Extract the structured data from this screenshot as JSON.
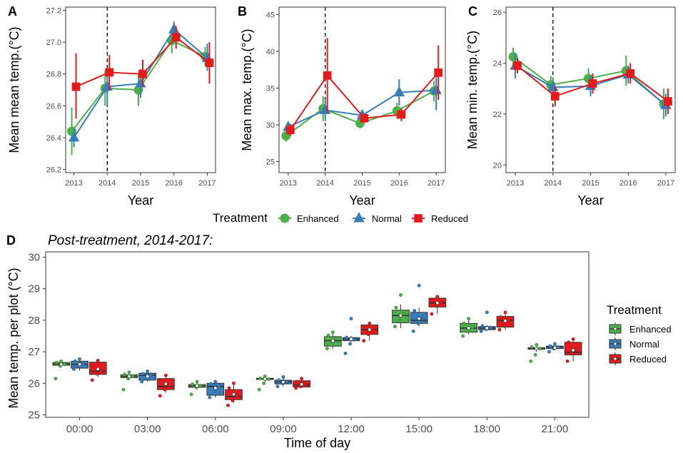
{
  "colors": {
    "Enhanced": "#4daf4a",
    "Normal": "#377eb8",
    "Reduced": "#e41a1c"
  },
  "legend_top": {
    "title": "Treatment",
    "entries": [
      "Enhanced",
      "Normal",
      "Reduced"
    ]
  },
  "legend_right": {
    "title": "Treatment",
    "entries": [
      "Enhanced",
      "Normal",
      "Reduced"
    ]
  },
  "chart_data": [
    {
      "panel": "A",
      "type": "line",
      "title": "",
      "xlabel": "Year",
      "ylabel": "Mean mean temp.(°C)",
      "x": [
        "2013",
        "2014",
        "2015",
        "2016",
        "2017"
      ],
      "ylim": [
        26.18,
        27.22
      ],
      "yticks": [
        26.2,
        26.4,
        26.6,
        26.8,
        27.0,
        27.2
      ],
      "ytick_labels": [
        "26.2",
        "26.4",
        "26.6",
        "26.8",
        "27.0",
        "27.2"
      ],
      "vline_at": "2014",
      "series": [
        {
          "name": "Enhanced",
          "values": [
            26.44,
            26.71,
            26.7,
            27.01,
            26.91
          ],
          "lo": [
            26.29,
            26.6,
            26.6,
            26.93,
            26.85
          ],
          "hi": [
            26.59,
            26.82,
            26.8,
            27.09,
            26.97
          ]
        },
        {
          "name": "Normal",
          "values": [
            26.4,
            26.72,
            26.74,
            27.08,
            26.9
          ],
          "lo": [
            26.34,
            26.6,
            26.65,
            27.03,
            26.82
          ],
          "hi": [
            26.46,
            26.84,
            26.83,
            27.13,
            26.99
          ]
        },
        {
          "name": "Reduced",
          "values": [
            26.72,
            26.81,
            26.8,
            27.03,
            26.87
          ],
          "lo": [
            26.52,
            26.7,
            26.72,
            26.96,
            26.74
          ],
          "hi": [
            26.93,
            26.92,
            26.89,
            27.1,
            27.0
          ]
        }
      ]
    },
    {
      "panel": "B",
      "type": "line",
      "title": "",
      "xlabel": "Year",
      "ylabel": "Mean max. temp.(°C)",
      "x": [
        "2013",
        "2014",
        "2015",
        "2016",
        "2017"
      ],
      "ylim": [
        23.5,
        46.0
      ],
      "yticks": [
        25,
        30,
        35,
        40,
        45
      ],
      "ytick_labels": [
        "25",
        "30",
        "35",
        "40",
        "45"
      ],
      "vline_at": "2014",
      "series": [
        {
          "name": "Enhanced",
          "values": [
            28.5,
            32.2,
            30.2,
            31.9,
            34.6
          ],
          "lo": [
            27.7,
            30.5,
            29.5,
            30.8,
            33.2
          ],
          "hi": [
            29.3,
            33.9,
            30.9,
            33.0,
            36.0
          ]
        },
        {
          "name": "Normal",
          "values": [
            29.7,
            32.0,
            31.3,
            34.4,
            34.7
          ],
          "lo": [
            29.0,
            30.5,
            30.6,
            32.6,
            32.0
          ],
          "hi": [
            30.4,
            33.5,
            32.0,
            36.2,
            37.4
          ]
        },
        {
          "name": "Reduced",
          "values": [
            29.3,
            36.7,
            30.9,
            31.4,
            37.1
          ],
          "lo": [
            28.5,
            31.6,
            30.3,
            30.5,
            33.4
          ],
          "hi": [
            30.1,
            41.8,
            31.5,
            32.3,
            40.8
          ]
        }
      ]
    },
    {
      "panel": "C",
      "type": "line",
      "title": "",
      "xlabel": "Year",
      "ylabel": "Mean min. temp.(°C)",
      "x": [
        "2013",
        "2014",
        "2015",
        "2016",
        "2017"
      ],
      "ylim": [
        19.7,
        26.2
      ],
      "yticks": [
        20,
        22,
        24,
        26
      ],
      "ytick_labels": [
        "20",
        "22",
        "24",
        "26"
      ],
      "vline_at": "2014",
      "series": [
        {
          "name": "Enhanced",
          "values": [
            24.25,
            23.15,
            23.4,
            23.7,
            22.4
          ],
          "lo": [
            23.9,
            22.8,
            23.0,
            23.1,
            21.8
          ],
          "hi": [
            24.6,
            23.5,
            23.8,
            24.3,
            23.0
          ]
        },
        {
          "name": "Normal",
          "values": [
            23.9,
            23.05,
            23.1,
            23.55,
            22.35
          ],
          "lo": [
            23.4,
            22.7,
            22.7,
            23.2,
            21.9
          ],
          "hi": [
            24.4,
            23.4,
            23.5,
            23.9,
            22.8
          ]
        },
        {
          "name": "Reduced",
          "values": [
            23.9,
            22.7,
            23.2,
            23.6,
            22.5
          ],
          "lo": [
            23.6,
            22.3,
            22.8,
            23.2,
            22.0
          ],
          "hi": [
            24.2,
            23.1,
            23.6,
            24.0,
            23.0
          ]
        }
      ]
    },
    {
      "panel": "D",
      "type": "box",
      "title": "Post-treatment, 2014-2017:",
      "xlabel": "Time of day",
      "ylabel": "Mean temp. per plot  (°C)",
      "categories": [
        "00:00",
        "03:00",
        "06:00",
        "09:00",
        "12:00",
        "15:00",
        "18:00",
        "21:00"
      ],
      "ylim": [
        24.92,
        30.17
      ],
      "yticks": [
        25,
        26,
        27,
        28,
        29,
        30
      ],
      "ytick_labels": [
        "25",
        "26",
        "27",
        "28",
        "29",
        "30"
      ],
      "series": [
        {
          "name": "Enhanced",
          "boxes": [
            {
              "min": 26.5,
              "q1": 26.57,
              "median": 26.61,
              "q3": 26.66,
              "max": 26.72,
              "mean": 26.6,
              "points": [
                26.15,
                26.55,
                26.6,
                26.66,
                26.7
              ]
            },
            {
              "min": 26.1,
              "q1": 26.18,
              "median": 26.22,
              "q3": 26.27,
              "max": 26.35,
              "mean": 26.22,
              "points": [
                25.8,
                26.15,
                26.22,
                26.28,
                26.35
              ]
            },
            {
              "min": 25.8,
              "q1": 25.87,
              "median": 25.92,
              "q3": 25.96,
              "max": 26.05,
              "mean": 25.92,
              "points": [
                25.65,
                25.88,
                25.93,
                25.97,
                26.05
              ]
            },
            {
              "min": 26.05,
              "q1": 26.12,
              "median": 26.14,
              "q3": 26.16,
              "max": 26.2,
              "mean": 26.14,
              "points": [
                25.8,
                26.0,
                26.13,
                26.16,
                26.22
              ]
            },
            {
              "min": 27.1,
              "q1": 27.18,
              "median": 27.35,
              "q3": 27.48,
              "max": 27.6,
              "mean": 27.35,
              "points": [
                27.1,
                27.3,
                27.42,
                27.52,
                27.62
              ]
            },
            {
              "min": 27.75,
              "q1": 27.92,
              "median": 28.15,
              "q3": 28.32,
              "max": 28.5,
              "mean": 28.15,
              "points": [
                27.8,
                28.0,
                28.2,
                28.4,
                28.8
              ]
            },
            {
              "min": 27.55,
              "q1": 27.62,
              "median": 27.75,
              "q3": 27.9,
              "max": 28.05,
              "mean": 27.75,
              "points": [
                27.5,
                27.65,
                27.78,
                27.9,
                28.05
              ]
            },
            {
              "min": 27.0,
              "q1": 27.08,
              "median": 27.1,
              "q3": 27.13,
              "max": 27.2,
              "mean": 27.1,
              "points": [
                26.7,
                26.9,
                27.1,
                27.15,
                27.22
              ]
            }
          ]
        },
        {
          "name": "Normal",
          "boxes": [
            {
              "min": 26.4,
              "q1": 26.48,
              "median": 26.6,
              "q3": 26.7,
              "max": 26.78,
              "mean": 26.6,
              "points": [
                26.45,
                26.55,
                26.62,
                26.7,
                26.77
              ]
            },
            {
              "min": 26.05,
              "q1": 26.1,
              "median": 26.25,
              "q3": 26.32,
              "max": 26.4,
              "mean": 26.22,
              "points": [
                26.05,
                26.15,
                26.25,
                26.3,
                26.38
              ]
            },
            {
              "min": 25.55,
              "q1": 25.62,
              "median": 25.9,
              "q3": 26.0,
              "max": 26.05,
              "mean": 25.85,
              "points": [
                25.55,
                25.75,
                25.92,
                25.98,
                26.05
              ]
            },
            {
              "min": 25.9,
              "q1": 25.98,
              "median": 26.05,
              "q3": 26.1,
              "max": 26.2,
              "mean": 26.04,
              "points": [
                25.9,
                26.0,
                26.05,
                26.1,
                26.2
              ]
            },
            {
              "min": 27.3,
              "q1": 27.35,
              "median": 27.4,
              "q3": 27.45,
              "max": 27.5,
              "mean": 27.4,
              "points": [
                26.95,
                27.25,
                27.38,
                27.45,
                28.05
              ]
            },
            {
              "min": 27.8,
              "q1": 27.9,
              "median": 28.0,
              "q3": 28.25,
              "max": 28.4,
              "mean": 28.05,
              "points": [
                27.65,
                27.9,
                28.05,
                28.3,
                29.1
              ]
            },
            {
              "min": 27.65,
              "q1": 27.7,
              "median": 27.75,
              "q3": 27.8,
              "max": 27.85,
              "mean": 27.75,
              "points": [
                27.65,
                27.72,
                27.77,
                27.82,
                28.25
              ]
            },
            {
              "min": 27.05,
              "q1": 27.1,
              "median": 27.15,
              "q3": 27.18,
              "max": 27.2,
              "mean": 27.13,
              "points": [
                27.0,
                27.1,
                27.15,
                27.18,
                27.25
              ]
            }
          ]
        },
        {
          "name": "Reduced",
          "boxes": [
            {
              "min": 26.2,
              "q1": 26.28,
              "median": 26.38,
              "q3": 26.67,
              "max": 26.7,
              "mean": 26.45,
              "points": [
                26.1,
                26.3,
                26.4,
                26.55,
                26.72
              ]
            },
            {
              "min": 25.7,
              "q1": 25.8,
              "median": 25.9,
              "q3": 26.15,
              "max": 26.25,
              "mean": 25.98,
              "points": [
                25.6,
                25.8,
                25.95,
                26.1,
                26.25
              ]
            },
            {
              "min": 25.4,
              "q1": 25.48,
              "median": 25.58,
              "q3": 25.8,
              "max": 26.0,
              "mean": 25.65,
              "points": [
                25.3,
                25.45,
                25.6,
                25.85,
                26.0
              ]
            },
            {
              "min": 25.85,
              "q1": 25.88,
              "median": 25.95,
              "q3": 26.08,
              "max": 26.15,
              "mean": 25.97,
              "points": [
                25.85,
                25.9,
                25.98,
                26.05,
                26.15
              ]
            },
            {
              "min": 27.35,
              "q1": 27.55,
              "median": 27.7,
              "q3": 27.85,
              "max": 27.9,
              "mean": 27.7,
              "points": [
                27.35,
                27.55,
                27.7,
                27.8,
                27.9
              ]
            },
            {
              "min": 28.2,
              "q1": 28.42,
              "median": 28.55,
              "q3": 28.7,
              "max": 28.75,
              "mean": 28.55,
              "points": [
                28.2,
                28.45,
                28.55,
                28.65,
                28.75
              ]
            },
            {
              "min": 27.7,
              "q1": 27.78,
              "median": 28.0,
              "q3": 28.12,
              "max": 28.25,
              "mean": 27.98,
              "points": [
                27.7,
                27.85,
                27.98,
                28.1,
                28.25
              ]
            },
            {
              "min": 26.7,
              "q1": 26.9,
              "median": 26.98,
              "q3": 27.3,
              "max": 27.4,
              "mean": 27.05,
              "points": [
                26.7,
                26.95,
                27.05,
                27.3,
                27.4
              ]
            }
          ]
        }
      ]
    }
  ]
}
